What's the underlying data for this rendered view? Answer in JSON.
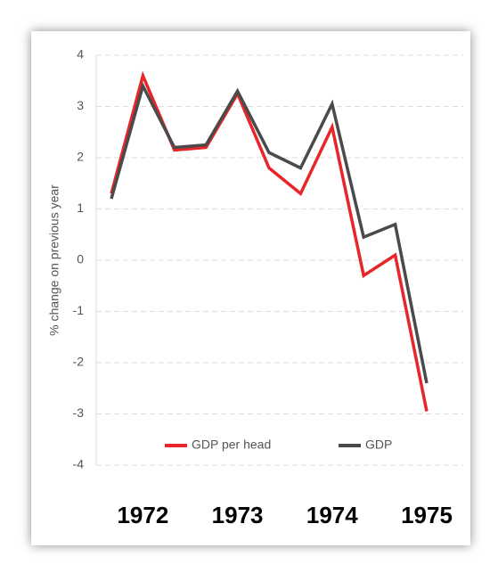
{
  "chart_data": {
    "type": "line",
    "ylabel": "% change on previous  year",
    "categories": [
      null,
      "1972",
      null,
      null,
      "1973",
      null,
      null,
      "1974",
      null,
      null,
      "1975"
    ],
    "series": [
      {
        "name": "GDP per head",
        "color": "#e8262a",
        "values": [
          1.3,
          3.6,
          2.15,
          2.2,
          3.25,
          1.8,
          1.3,
          2.6,
          -0.3,
          0.1,
          -2.95
        ]
      },
      {
        "name": "GDP",
        "color": "#4a4a4a",
        "values": [
          1.2,
          3.4,
          2.2,
          2.25,
          3.3,
          2.1,
          1.8,
          3.05,
          0.45,
          0.7,
          -2.4
        ]
      }
    ],
    "ylim": [
      -4,
      4
    ],
    "yticks": [
      -4,
      -3,
      -2,
      -1,
      0,
      1,
      2,
      3,
      4
    ],
    "grid": true,
    "legend": "bottom"
  }
}
